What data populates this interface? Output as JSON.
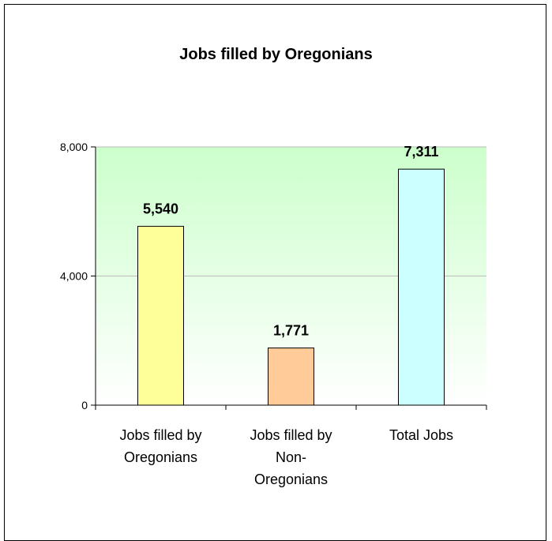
{
  "chart_data": {
    "type": "bar",
    "title": "Jobs filled by Oregonians",
    "categories": [
      "Jobs filled by Oregonians",
      "Jobs filled by Non-Oregonians",
      "Total Jobs"
    ],
    "category_lines": [
      [
        "Jobs filled by",
        "Oregonians"
      ],
      [
        "Jobs filled by",
        "Non-",
        "Oregonians"
      ],
      [
        "Total Jobs"
      ]
    ],
    "values": [
      5540,
      1771,
      7311
    ],
    "data_labels": [
      "5,540",
      "1,771",
      "7,311"
    ],
    "bar_colors": [
      "#ffff99",
      "#ffcc99",
      "#ccffff"
    ],
    "ylim": [
      0,
      8000
    ],
    "yticks": [
      0,
      4000,
      8000
    ],
    "ytick_labels": [
      "0",
      "4,000",
      "8,000"
    ],
    "xlabel": "",
    "ylabel": "",
    "grid": true,
    "plot_background": [
      "#ccffcc",
      "#ffffff"
    ]
  }
}
